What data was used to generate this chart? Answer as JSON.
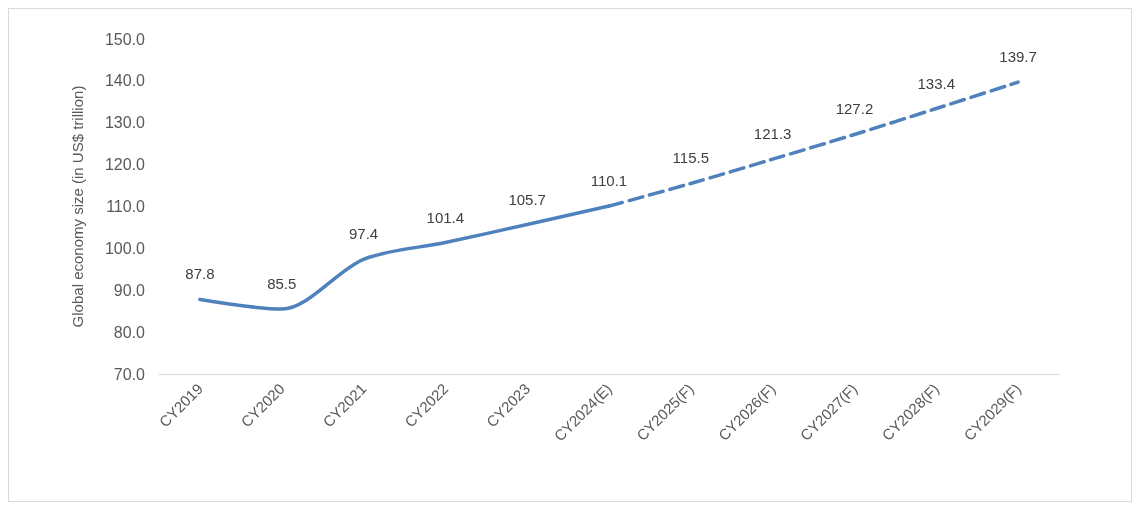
{
  "chart_data": {
    "type": "line",
    "ylabel": "Global economy size (in US$ trillion)",
    "categories": [
      "CY2019",
      "CY2020",
      "CY2021",
      "CY2022",
      "CY2023",
      "CY2024(E)",
      "CY2025(F)",
      "CY2026(F)",
      "CY2027(F)",
      "CY2028(F)",
      "CY2029(F)"
    ],
    "series": [
      {
        "color": "#4f81bd",
        "line_style": "solid",
        "values": [
          87.8,
          85.5,
          97.4,
          101.4,
          105.7,
          110.1,
          null,
          null,
          null,
          null,
          null
        ],
        "value_labels": [
          "87.8",
          "85.5",
          "97.4",
          "101.4",
          "105.7",
          "110.1",
          null,
          null,
          null,
          null,
          null
        ]
      },
      {
        "color": "#4f81bd",
        "line_style": "dashed",
        "values": [
          null,
          null,
          null,
          null,
          null,
          110.1,
          115.5,
          121.3,
          127.2,
          133.4,
          139.7
        ],
        "value_labels": [
          null,
          null,
          null,
          null,
          null,
          null,
          "115.5",
          "121.3",
          "127.2",
          "133.4",
          "139.7"
        ]
      }
    ],
    "ylim": [
      70,
      150
    ],
    "yticks": [
      {
        "value": 70,
        "label": "70.0"
      },
      {
        "value": 80,
        "label": "80.0"
      },
      {
        "value": 90,
        "label": "90.0"
      },
      {
        "value": 100,
        "label": "100.0"
      },
      {
        "value": 110,
        "label": "110.0"
      },
      {
        "value": 120,
        "label": "120.0"
      },
      {
        "value": 130,
        "label": "130.0"
      },
      {
        "value": 140,
        "label": "140.0"
      },
      {
        "value": 150,
        "label": "150.0"
      }
    ],
    "grid": false,
    "marker": "none"
  }
}
